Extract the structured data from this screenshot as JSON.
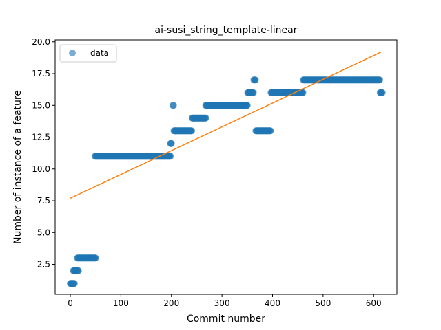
{
  "chart_data": {
    "type": "scatter",
    "title": "ai-susi_string_template-linear",
    "xlabel": "Commit number",
    "ylabel": "Number of instance of a feature",
    "xlim": [
      -30,
      646
    ],
    "ylim": [
      0.15,
      20.15
    ],
    "xticks": [
      0,
      100,
      200,
      300,
      400,
      500,
      600
    ],
    "yticks": [
      2.5,
      5.0,
      7.5,
      10.0,
      12.5,
      15.0,
      17.5,
      20.0
    ],
    "ytick_labels": [
      "2.5",
      "5.0",
      "7.5",
      "10.0",
      "12.5",
      "15.0",
      "17.5",
      "20.0"
    ],
    "grid": false,
    "legend": {
      "location": "upper-left",
      "entries": [
        "data"
      ]
    },
    "colors": {
      "data": "#1f77b4",
      "fit": "#ff7f0e"
    },
    "series": [
      {
        "name": "data",
        "kind": "scatter",
        "segments": [
          {
            "x_start": 0,
            "x_end": 8,
            "y": 1
          },
          {
            "x_start": 6,
            "x_end": 16,
            "y": 2
          },
          {
            "x_start": 14,
            "x_end": 50,
            "y": 3
          },
          {
            "x_start": 49,
            "x_end": 198,
            "y": 11
          },
          {
            "x_start": 198,
            "x_end": 200,
            "y": 12
          },
          {
            "x_start": 203,
            "x_end": 204,
            "y": 15
          },
          {
            "x_start": 205,
            "x_end": 240,
            "y": 13
          },
          {
            "x_start": 241,
            "x_end": 268,
            "y": 14
          },
          {
            "x_start": 268,
            "x_end": 350,
            "y": 15
          },
          {
            "x_start": 351,
            "x_end": 362,
            "y": 16
          },
          {
            "x_start": 363,
            "x_end": 366,
            "y": 17
          },
          {
            "x_start": 367,
            "x_end": 396,
            "y": 13
          },
          {
            "x_start": 397,
            "x_end": 460,
            "y": 16
          },
          {
            "x_start": 461,
            "x_end": 612,
            "y": 17
          },
          {
            "x_start": 613,
            "x_end": 617,
            "y": 16
          }
        ]
      },
      {
        "kind": "line",
        "x": [
          0,
          615
        ],
        "y": [
          7.7,
          19.2
        ]
      }
    ]
  }
}
